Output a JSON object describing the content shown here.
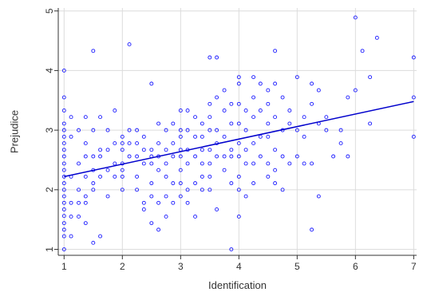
{
  "chart_data": {
    "type": "scatter",
    "title": "",
    "xlabel": "Identification",
    "ylabel": "Prejudice",
    "xlim": [
      0.9,
      7.05
    ],
    "ylim": [
      0.9,
      5.05
    ],
    "xticks": [
      1,
      2,
      3,
      4,
      5,
      6,
      7
    ],
    "yticks": [
      1,
      2,
      3,
      4,
      5
    ],
    "grid": true,
    "colors": {
      "points": "#1a1aff",
      "fit_line": "#0000cc",
      "grid": "#dcdcdc"
    },
    "fit_line": {
      "x": [
        1,
        7
      ],
      "y": [
        2.22,
        3.48
      ]
    },
    "points": [
      [
        1,
        4.0
      ],
      [
        1,
        3.55
      ],
      [
        1,
        3.33
      ],
      [
        1,
        3.11
      ],
      [
        1,
        3.0
      ],
      [
        1,
        2.89
      ],
      [
        1,
        2.78
      ],
      [
        1,
        2.67
      ],
      [
        1,
        2.56
      ],
      [
        1,
        2.44
      ],
      [
        1,
        2.33
      ],
      [
        1,
        2.22
      ],
      [
        1,
        2.11
      ],
      [
        1,
        2.0
      ],
      [
        1,
        1.89
      ],
      [
        1,
        1.78
      ],
      [
        1,
        1.67
      ],
      [
        1,
        1.56
      ],
      [
        1,
        1.44
      ],
      [
        1,
        1.33
      ],
      [
        1,
        1.22
      ],
      [
        1,
        1.0
      ],
      [
        1.12,
        3.22
      ],
      [
        1.12,
        2.89
      ],
      [
        1.12,
        2.22
      ],
      [
        1.12,
        1.78
      ],
      [
        1.12,
        1.55
      ],
      [
        1.12,
        1.22
      ],
      [
        1.25,
        3.0
      ],
      [
        1.25,
        2.44
      ],
      [
        1.25,
        2.0
      ],
      [
        1.25,
        1.78
      ],
      [
        1.25,
        1.55
      ],
      [
        1.37,
        3.22
      ],
      [
        1.37,
        2.78
      ],
      [
        1.37,
        2.56
      ],
      [
        1.37,
        2.22
      ],
      [
        1.37,
        1.89
      ],
      [
        1.37,
        1.78
      ],
      [
        1.37,
        1.44
      ],
      [
        1.5,
        4.33
      ],
      [
        1.5,
        3.0
      ],
      [
        1.5,
        2.56
      ],
      [
        1.5,
        2.33
      ],
      [
        1.5,
        2.11
      ],
      [
        1.5,
        2.0
      ],
      [
        1.5,
        1.11
      ],
      [
        1.62,
        3.22
      ],
      [
        1.62,
        2.67
      ],
      [
        1.62,
        2.56
      ],
      [
        1.62,
        2.22
      ],
      [
        1.62,
        1.22
      ],
      [
        1.75,
        3.0
      ],
      [
        1.75,
        2.67
      ],
      [
        1.75,
        2.33
      ],
      [
        1.75,
        1.89
      ],
      [
        1.87,
        3.33
      ],
      [
        1.87,
        2.78
      ],
      [
        1.87,
        2.44
      ],
      [
        1.87,
        2.22
      ],
      [
        2,
        2.89
      ],
      [
        2,
        2.78
      ],
      [
        2,
        2.67
      ],
      [
        2,
        2.44
      ],
      [
        2,
        2.33
      ],
      [
        2,
        2.22
      ],
      [
        2,
        2.0
      ],
      [
        2.12,
        4.44
      ],
      [
        2.12,
        3.0
      ],
      [
        2.12,
        2.78
      ],
      [
        2.12,
        2.56
      ],
      [
        2.25,
        3.0
      ],
      [
        2.25,
        2.78
      ],
      [
        2.25,
        2.56
      ],
      [
        2.25,
        2.22
      ],
      [
        2.25,
        2.0
      ],
      [
        2.37,
        2.89
      ],
      [
        2.37,
        2.67
      ],
      [
        2.37,
        2.44
      ],
      [
        2.37,
        1.78
      ],
      [
        2.37,
        1.67
      ],
      [
        2.5,
        3.78
      ],
      [
        2.5,
        2.67
      ],
      [
        2.5,
        2.56
      ],
      [
        2.5,
        2.44
      ],
      [
        2.5,
        2.11
      ],
      [
        2.5,
        1.89
      ],
      [
        2.5,
        1.44
      ],
      [
        2.62,
        3.11
      ],
      [
        2.62,
        2.78
      ],
      [
        2.62,
        2.56
      ],
      [
        2.62,
        2.33
      ],
      [
        2.62,
        1.78
      ],
      [
        2.62,
        1.33
      ],
      [
        2.75,
        3.0
      ],
      [
        2.75,
        2.67
      ],
      [
        2.75,
        2.44
      ],
      [
        2.75,
        2.22
      ],
      [
        2.75,
        1.89
      ],
      [
        2.75,
        1.55
      ],
      [
        2.87,
        3.11
      ],
      [
        2.87,
        2.78
      ],
      [
        2.87,
        2.56
      ],
      [
        2.87,
        2.11
      ],
      [
        2.87,
        1.78
      ],
      [
        3,
        3.33
      ],
      [
        3,
        3.0
      ],
      [
        3,
        2.89
      ],
      [
        3,
        2.67
      ],
      [
        3,
        2.56
      ],
      [
        3,
        2.33
      ],
      [
        3,
        2.11
      ],
      [
        3,
        1.89
      ],
      [
        3.12,
        3.33
      ],
      [
        3.12,
        3.0
      ],
      [
        3.12,
        2.67
      ],
      [
        3.12,
        2.44
      ],
      [
        3.12,
        2.0
      ],
      [
        3.12,
        1.78
      ],
      [
        3.25,
        3.22
      ],
      [
        3.25,
        2.89
      ],
      [
        3.25,
        2.56
      ],
      [
        3.25,
        2.11
      ],
      [
        3.25,
        1.55
      ],
      [
        3.37,
        3.11
      ],
      [
        3.37,
        2.89
      ],
      [
        3.37,
        2.67
      ],
      [
        3.37,
        2.44
      ],
      [
        3.37,
        2.22
      ],
      [
        3.37,
        2.0
      ],
      [
        3.5,
        4.22
      ],
      [
        3.5,
        3.44
      ],
      [
        3.5,
        3.22
      ],
      [
        3.5,
        3.0
      ],
      [
        3.5,
        2.67
      ],
      [
        3.5,
        2.44
      ],
      [
        3.5,
        2.22
      ],
      [
        3.5,
        2.0
      ],
      [
        3.62,
        4.22
      ],
      [
        3.62,
        3.55
      ],
      [
        3.62,
        3.0
      ],
      [
        3.62,
        2.78
      ],
      [
        3.62,
        2.56
      ],
      [
        3.62,
        1.67
      ],
      [
        3.75,
        3.67
      ],
      [
        3.75,
        3.33
      ],
      [
        3.75,
        2.89
      ],
      [
        3.75,
        2.56
      ],
      [
        3.75,
        2.33
      ],
      [
        3.87,
        3.44
      ],
      [
        3.87,
        3.11
      ],
      [
        3.87,
        2.67
      ],
      [
        3.87,
        2.56
      ],
      [
        3.87,
        2.11
      ],
      [
        3.87,
        1.0
      ],
      [
        4,
        3.89
      ],
      [
        4,
        3.78
      ],
      [
        4,
        3.44
      ],
      [
        4,
        3.11
      ],
      [
        4,
        2.78
      ],
      [
        4,
        2.56
      ],
      [
        4,
        2.22
      ],
      [
        4,
        2.0
      ],
      [
        4,
        1.55
      ],
      [
        4.12,
        3.33
      ],
      [
        4.12,
        3.0
      ],
      [
        4.12,
        2.67
      ],
      [
        4.12,
        2.44
      ],
      [
        4.12,
        1.89
      ],
      [
        4.25,
        3.89
      ],
      [
        4.25,
        3.55
      ],
      [
        4.25,
        3.22
      ],
      [
        4.25,
        2.78
      ],
      [
        4.25,
        2.44
      ],
      [
        4.25,
        2.11
      ],
      [
        4.37,
        3.78
      ],
      [
        4.37,
        3.33
      ],
      [
        4.37,
        2.89
      ],
      [
        4.37,
        2.56
      ],
      [
        4.5,
        3.67
      ],
      [
        4.5,
        3.44
      ],
      [
        4.5,
        3.11
      ],
      [
        4.5,
        2.89
      ],
      [
        4.5,
        2.44
      ],
      [
        4.5,
        2.22
      ],
      [
        4.62,
        4.33
      ],
      [
        4.62,
        3.78
      ],
      [
        4.62,
        3.22
      ],
      [
        4.62,
        2.67
      ],
      [
        4.62,
        2.33
      ],
      [
        4.62,
        2.11
      ],
      [
        4.75,
        3.55
      ],
      [
        4.75,
        3.0
      ],
      [
        4.75,
        2.56
      ],
      [
        4.75,
        2.0
      ],
      [
        4.87,
        3.33
      ],
      [
        4.87,
        3.11
      ],
      [
        4.87,
        2.44
      ],
      [
        5,
        3.89
      ],
      [
        5,
        3.0
      ],
      [
        5,
        2.56
      ],
      [
        5.12,
        3.22
      ],
      [
        5.12,
        2.89
      ],
      [
        5.12,
        2.44
      ],
      [
        5.25,
        3.78
      ],
      [
        5.25,
        3.44
      ],
      [
        5.25,
        2.44
      ],
      [
        5.25,
        1.33
      ],
      [
        5.37,
        3.67
      ],
      [
        5.37,
        3.11
      ],
      [
        5.37,
        1.89
      ],
      [
        5.5,
        3.22
      ],
      [
        5.5,
        3.0
      ],
      [
        5.62,
        2.56
      ],
      [
        5.75,
        3.0
      ],
      [
        5.75,
        2.78
      ],
      [
        5.87,
        3.55
      ],
      [
        5.87,
        2.56
      ],
      [
        6,
        4.89
      ],
      [
        6,
        3.67
      ],
      [
        6.12,
        4.33
      ],
      [
        6.25,
        3.89
      ],
      [
        6.25,
        3.11
      ],
      [
        6.37,
        4.55
      ],
      [
        7,
        4.22
      ],
      [
        7,
        3.55
      ],
      [
        7,
        2.89
      ]
    ]
  }
}
